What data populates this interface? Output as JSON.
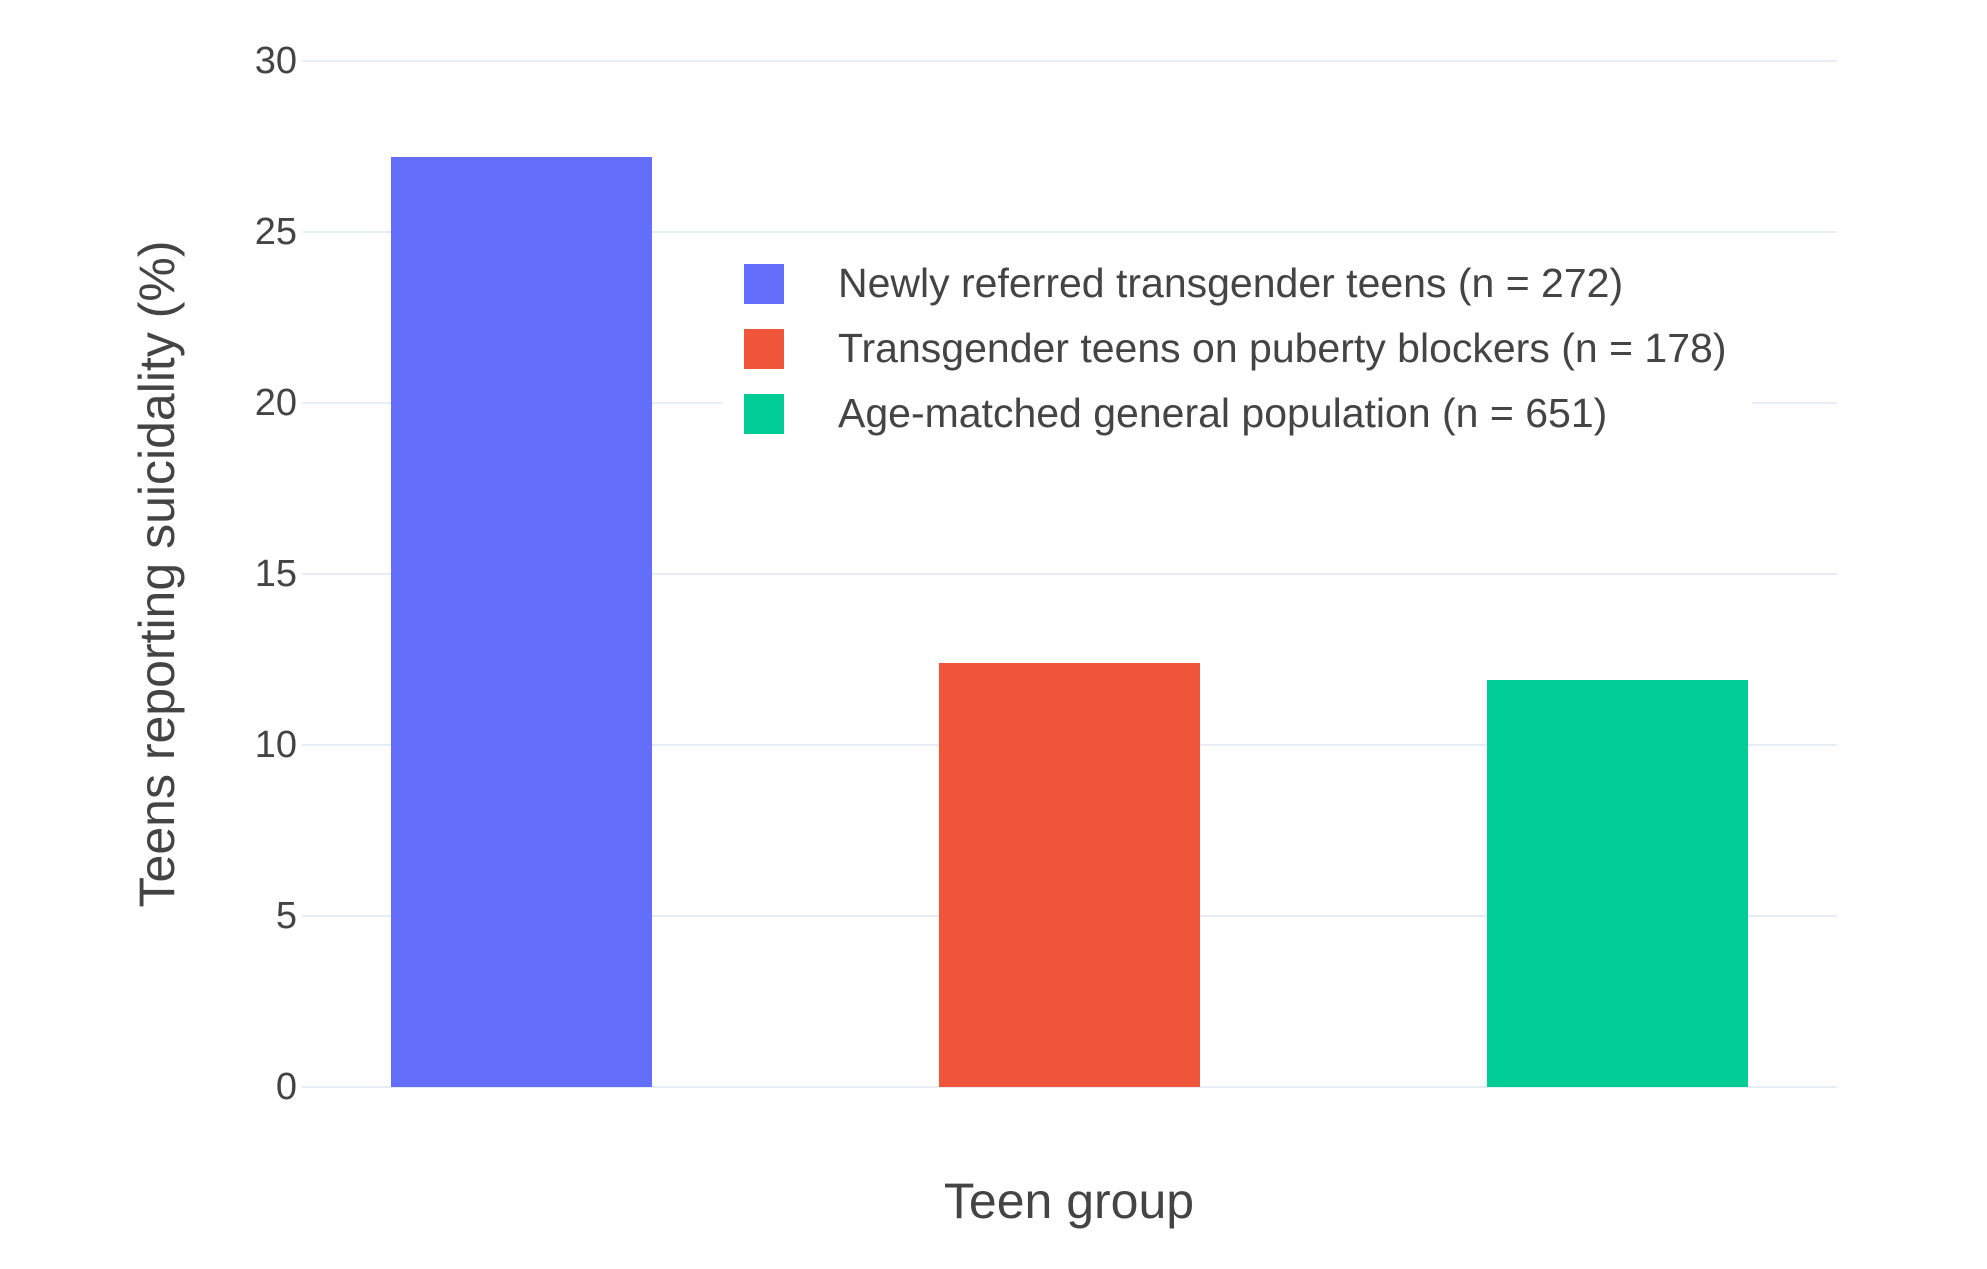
{
  "chart_data": {
    "type": "bar",
    "title": "",
    "xlabel": "Teen group",
    "ylabel": "Teens reporting suicidality (%)",
    "ylim": [
      0,
      30
    ],
    "yticks": [
      0,
      5,
      10,
      15,
      20,
      25,
      30
    ],
    "grid": true,
    "legend_position": "top-left-inside",
    "categories": [
      "Newly referred transgender teens (n = 272)",
      "Transgender teens on puberty blockers (n = 178)",
      "Age-matched general population (n = 651)"
    ],
    "series": [
      {
        "name": "Newly referred transgender teens (n = 272)",
        "value": 27.2,
        "color": "#636EFA"
      },
      {
        "name": "Transgender teens on puberty blockers (n = 178)",
        "value": 12.4,
        "color": "#EF553B"
      },
      {
        "name": "Age-matched general population (n = 651)",
        "value": 11.9,
        "color": "#00CC96"
      }
    ]
  },
  "colors": {
    "background": "#ffffff",
    "gridline": "#E6ECF5",
    "text": "#444444"
  }
}
